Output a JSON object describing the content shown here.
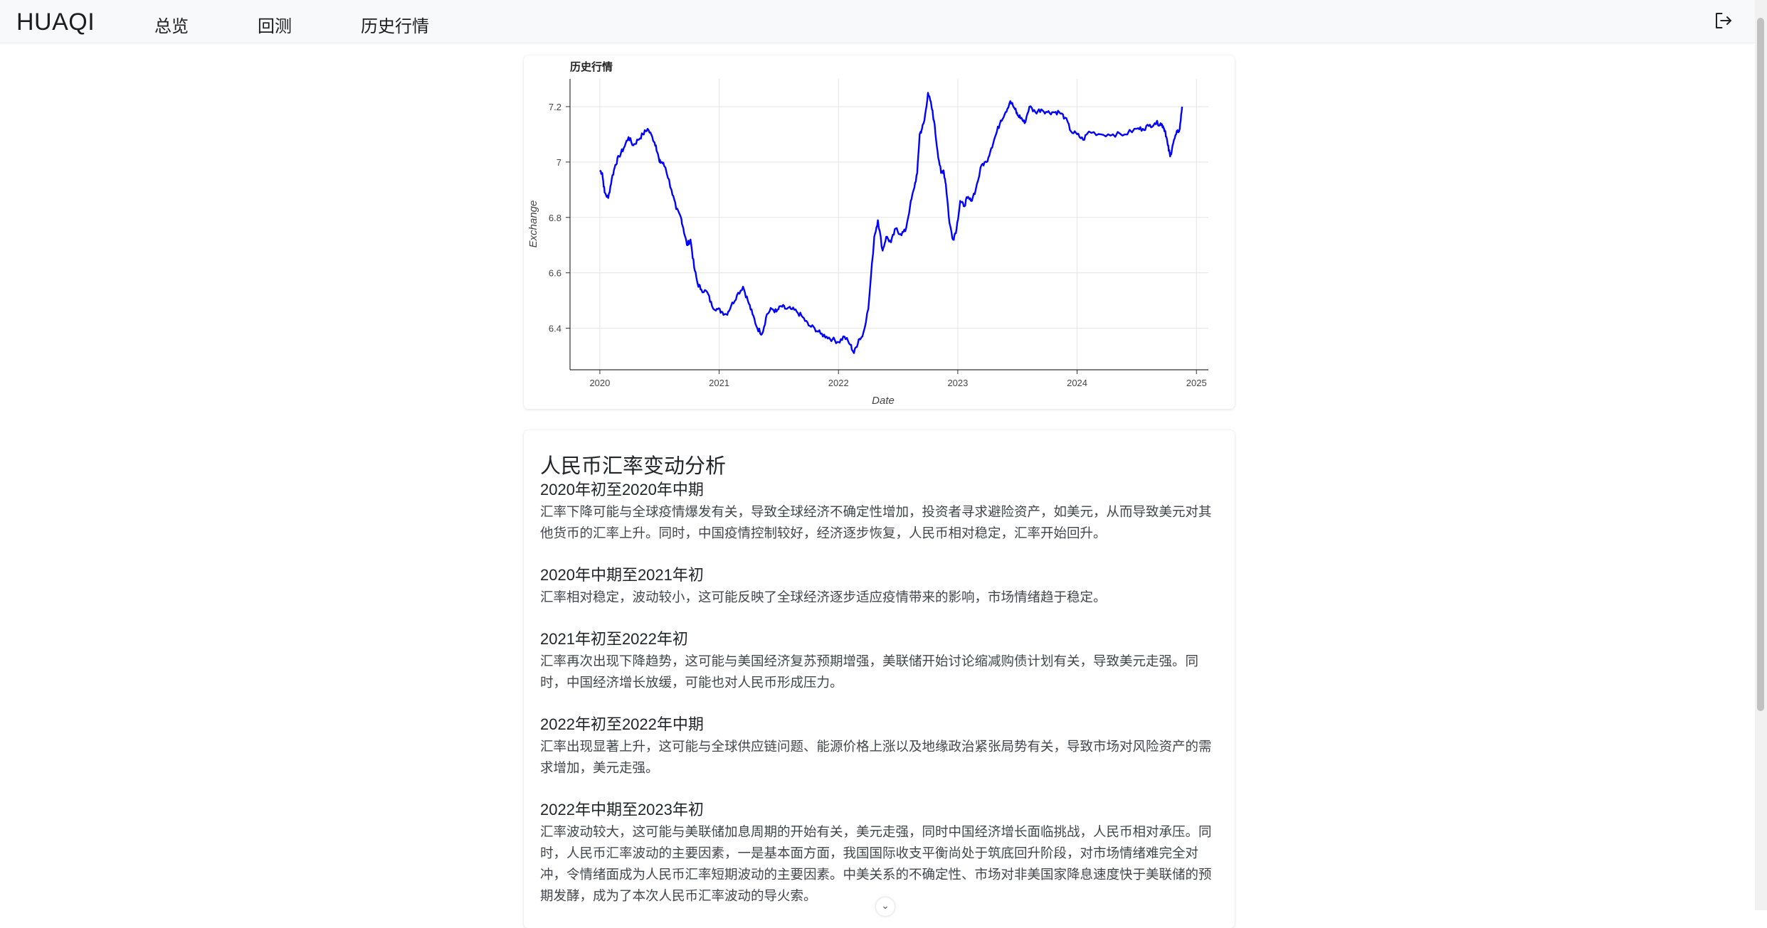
{
  "navbar": {
    "brand": "HUAQI",
    "links": [
      "总览",
      "回测",
      "历史行情"
    ]
  },
  "chart_data": {
    "type": "line",
    "title": "历史行情",
    "xlabel": "Date",
    "ylabel": "Exchange",
    "x_ticks": [
      "2020",
      "2021",
      "2022",
      "2023",
      "2024",
      "2025"
    ],
    "y_ticks": [
      "6.4",
      "6.6",
      "6.8",
      "7",
      "7.2"
    ],
    "xlim": [
      2019.75,
      2025.1
    ],
    "ylim": [
      6.25,
      7.3
    ],
    "grid": true,
    "color": "#0000ff",
    "series": [
      {
        "x": [
          2020.0,
          2020.02,
          2020.04,
          2020.07,
          2020.1,
          2020.13,
          2020.16,
          2020.2,
          2020.24,
          2020.28,
          2020.32,
          2020.36,
          2020.4,
          2020.44,
          2020.47,
          2020.5,
          2020.52,
          2020.55,
          2020.6,
          2020.64,
          2020.68,
          2020.7,
          2020.73,
          2020.76,
          2020.79,
          2020.82,
          2020.85,
          2020.9,
          2020.94,
          2020.98,
          2021.02,
          2021.06,
          2021.1,
          2021.15,
          2021.2,
          2021.24,
          2021.28,
          2021.32,
          2021.36,
          2021.4,
          2021.44,
          2021.48,
          2021.52,
          2021.56,
          2021.6,
          2021.65,
          2021.7,
          2021.75,
          2021.8,
          2021.85,
          2021.9,
          2021.95,
          2022.0,
          2022.05,
          2022.1,
          2022.13,
          2022.17,
          2022.2,
          2022.25,
          2022.3,
          2022.33,
          2022.37,
          2022.4,
          2022.44,
          2022.48,
          2022.52,
          2022.56,
          2022.6,
          2022.63,
          2022.66,
          2022.68,
          2022.7,
          2022.72,
          2022.75,
          2022.78,
          2022.8,
          2022.83,
          2022.86,
          2022.88,
          2022.9,
          2022.93,
          2022.96,
          2022.99,
          2023.02,
          2023.05,
          2023.08,
          2023.11,
          2023.15,
          2023.2,
          2023.24,
          2023.28,
          2023.32,
          2023.36,
          2023.4,
          2023.44,
          2023.48,
          2023.5,
          2023.53,
          2023.56,
          2023.6,
          2023.65,
          2023.7,
          2023.75,
          2023.8,
          2023.85,
          2023.9,
          2023.95,
          2024.0,
          2024.05,
          2024.1,
          2024.2,
          2024.3,
          2024.4,
          2024.5,
          2024.55,
          2024.6,
          2024.65,
          2024.7,
          2024.72,
          2024.74,
          2024.76,
          2024.78,
          2024.8,
          2024.83,
          2024.86,
          2024.88
        ],
        "y": [
          6.97,
          6.96,
          6.89,
          6.87,
          6.94,
          6.99,
          7.02,
          7.05,
          7.09,
          7.06,
          7.08,
          7.1,
          7.12,
          7.09,
          7.06,
          7.0,
          7.0,
          6.98,
          6.9,
          6.83,
          6.8,
          6.76,
          6.7,
          6.72,
          6.62,
          6.56,
          6.54,
          6.53,
          6.48,
          6.47,
          6.46,
          6.45,
          6.48,
          6.52,
          6.55,
          6.5,
          6.45,
          6.4,
          6.38,
          6.45,
          6.47,
          6.46,
          6.48,
          6.47,
          6.47,
          6.46,
          6.44,
          6.41,
          6.4,
          6.38,
          6.37,
          6.36,
          6.35,
          6.37,
          6.34,
          6.31,
          6.36,
          6.37,
          6.47,
          6.73,
          6.79,
          6.68,
          6.73,
          6.71,
          6.76,
          6.74,
          6.75,
          6.84,
          6.9,
          6.96,
          7.1,
          7.12,
          7.15,
          7.25,
          7.2,
          7.15,
          7.04,
          6.96,
          6.97,
          6.92,
          6.78,
          6.72,
          6.76,
          6.86,
          6.84,
          6.87,
          6.86,
          6.9,
          6.99,
          7.0,
          7.05,
          7.1,
          7.15,
          7.18,
          7.22,
          7.19,
          7.17,
          7.16,
          7.14,
          7.2,
          7.18,
          7.19,
          7.18,
          7.18,
          7.18,
          7.16,
          7.11,
          7.1,
          7.08,
          7.11,
          7.1,
          7.1,
          7.1,
          7.12,
          7.12,
          7.13,
          7.14,
          7.14,
          7.13,
          7.11,
          7.06,
          7.02,
          7.06,
          7.1,
          7.12,
          7.2
        ]
      }
    ]
  },
  "analysis": {
    "title": "人民币汇率变动分析",
    "sections": [
      {
        "heading": "2020年初至2020年中期",
        "body": "汇率下降可能与全球疫情爆发有关，导致全球经济不确定性增加，投资者寻求避险资产，如美元，从而导致美元对其他货币的汇率上升。同时，中国疫情控制较好，经济逐步恢复，人民币相对稳定，汇率开始回升。"
      },
      {
        "heading": "2020年中期至2021年初",
        "body": "汇率相对稳定，波动较小，这可能反映了全球经济逐步适应疫情带来的影响，市场情绪趋于稳定。"
      },
      {
        "heading": "2021年初至2022年初",
        "body": "汇率再次出现下降趋势，这可能与美国经济复苏预期增强，美联储开始讨论缩减购债计划有关，导致美元走强。同时，中国经济增长放缓，可能也对人民币形成压力。"
      },
      {
        "heading": "2022年初至2022年中期",
        "body": "汇率出现显著上升，这可能与全球供应链问题、能源价格上涨以及地缘政治紧张局势有关，导致市场对风险资产的需求增加，美元走强。"
      },
      {
        "heading": "2022年中期至2023年初",
        "body": "汇率波动较大，这可能与美联储加息周期的开始有关，美元走强，同时中国经济增长面临挑战，人民币相对承压。同时，人民币汇率波动的主要因素，一是基本面方面，我国国际收支平衡尚处于筑底回升阶段，对市场情绪难完全对冲，令情绪面成为人民币汇率短期波动的主要因素。中美关系的不确定性、市场对非美国家降息速度快于美联储的预期发酵，成为了本次人民币汇率波动的导火索。"
      }
    ]
  }
}
